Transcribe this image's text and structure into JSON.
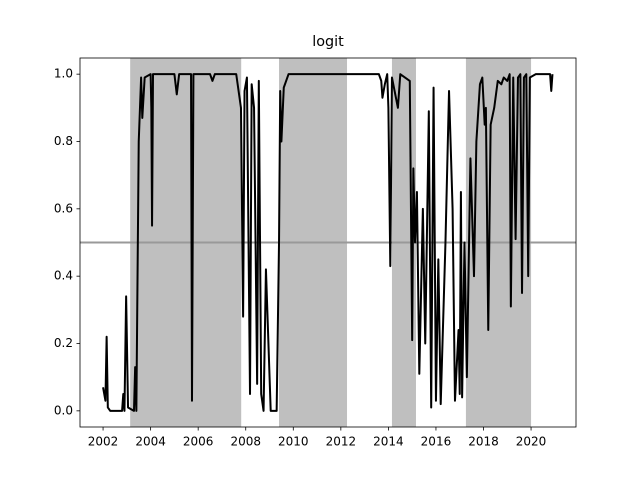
{
  "chart_data": {
    "type": "line",
    "title": "logit",
    "xlim": [
      2001.03,
      2021.89
    ],
    "ylim": [
      -0.048,
      1.048
    ],
    "xticks": [
      2002,
      2004,
      2006,
      2008,
      2010,
      2012,
      2014,
      2016,
      2018,
      2020
    ],
    "yticks": [
      {
        "value": 0,
        "label": "0.0"
      },
      0.2,
      0.4,
      0.6,
      0.8,
      {
        "value": 1,
        "label": "1.0"
      }
    ],
    "shaded_regions": [
      [
        2003.14,
        2007.81
      ],
      [
        2009.4,
        2012.26
      ],
      [
        2014.15,
        2015.16
      ],
      [
        2017.26,
        2020.0
      ]
    ],
    "shade_color": "#bfbfbf",
    "hline": {
      "value": 0.5,
      "color": "#999999"
    },
    "series": [
      {
        "color": "#000000",
        "x": [
          2002.0,
          2002.1,
          2002.15,
          2002.2,
          2002.3,
          2002.8,
          2002.85,
          2002.9,
          2002.97,
          2003.05,
          2003.3,
          2003.35,
          2003.4,
          2003.5,
          2003.6,
          2003.65,
          2003.75,
          2004.0,
          2004.03,
          2004.06,
          2004.1,
          2005.0,
          2005.1,
          2005.2,
          2005.7,
          2005.74,
          2005.8,
          2006.5,
          2006.6,
          2006.7,
          2007.6,
          2007.8,
          2007.89,
          2007.95,
          2008.05,
          2008.18,
          2008.25,
          2008.35,
          2008.48,
          2008.55,
          2008.65,
          2008.75,
          2008.85,
          2009.05,
          2009.3,
          2009.4,
          2009.45,
          2009.5,
          2009.6,
          2009.8,
          2013.6,
          2013.7,
          2013.75,
          2013.85,
          2013.95,
          2014.0,
          2014.08,
          2014.15,
          2014.4,
          2014.5,
          2014.9,
          2015.0,
          2015.05,
          2015.12,
          2015.2,
          2015.3,
          2015.45,
          2015.55,
          2015.7,
          2015.8,
          2015.9,
          2016.0,
          2016.1,
          2016.2,
          2016.4,
          2016.55,
          2016.7,
          2016.8,
          2016.95,
          2017.0,
          2017.05,
          2017.1,
          2017.2,
          2017.3,
          2017.45,
          2017.6,
          2017.7,
          2017.85,
          2017.95,
          2018.05,
          2018.1,
          2018.2,
          2018.3,
          2018.45,
          2018.6,
          2018.75,
          2018.85,
          2019.0,
          2019.1,
          2019.15,
          2019.25,
          2019.35,
          2019.45,
          2019.55,
          2019.62,
          2019.7,
          2019.8,
          2019.88,
          2019.95,
          2020.2,
          2020.8,
          2020.85,
          2020.9
        ],
        "values": [
          0.07,
          0.03,
          0.22,
          0.01,
          0.0,
          0.0,
          0.05,
          0.0,
          0.34,
          0.01,
          0.0,
          0.13,
          0.0,
          0.8,
          0.99,
          0.87,
          0.99,
          1.0,
          0.9,
          0.55,
          1.0,
          1.0,
          0.94,
          1.0,
          1.0,
          0.03,
          1.0,
          1.0,
          0.98,
          1.0,
          1.0,
          0.9,
          0.28,
          0.95,
          0.99,
          0.05,
          0.97,
          0.9,
          0.08,
          0.98,
          0.05,
          0.0,
          0.42,
          0.0,
          0.0,
          0.5,
          0.95,
          0.8,
          0.96,
          1.0,
          1.0,
          0.98,
          0.93,
          0.97,
          1.0,
          0.9,
          0.43,
          0.99,
          0.9,
          1.0,
          0.98,
          0.21,
          0.72,
          0.5,
          0.65,
          0.11,
          0.6,
          0.2,
          0.89,
          0.01,
          0.96,
          0.03,
          0.45,
          0.02,
          0.5,
          0.95,
          0.6,
          0.03,
          0.24,
          0.05,
          0.65,
          0.04,
          0.5,
          0.1,
          0.75,
          0.4,
          0.8,
          0.97,
          0.99,
          0.85,
          0.9,
          0.24,
          0.85,
          0.9,
          0.98,
          0.97,
          0.99,
          0.98,
          1.0,
          0.31,
          0.99,
          0.51,
          0.99,
          1.0,
          0.35,
          0.99,
          1.0,
          0.4,
          0.99,
          1.0,
          1.0,
          0.95,
          1.0
        ]
      }
    ]
  }
}
